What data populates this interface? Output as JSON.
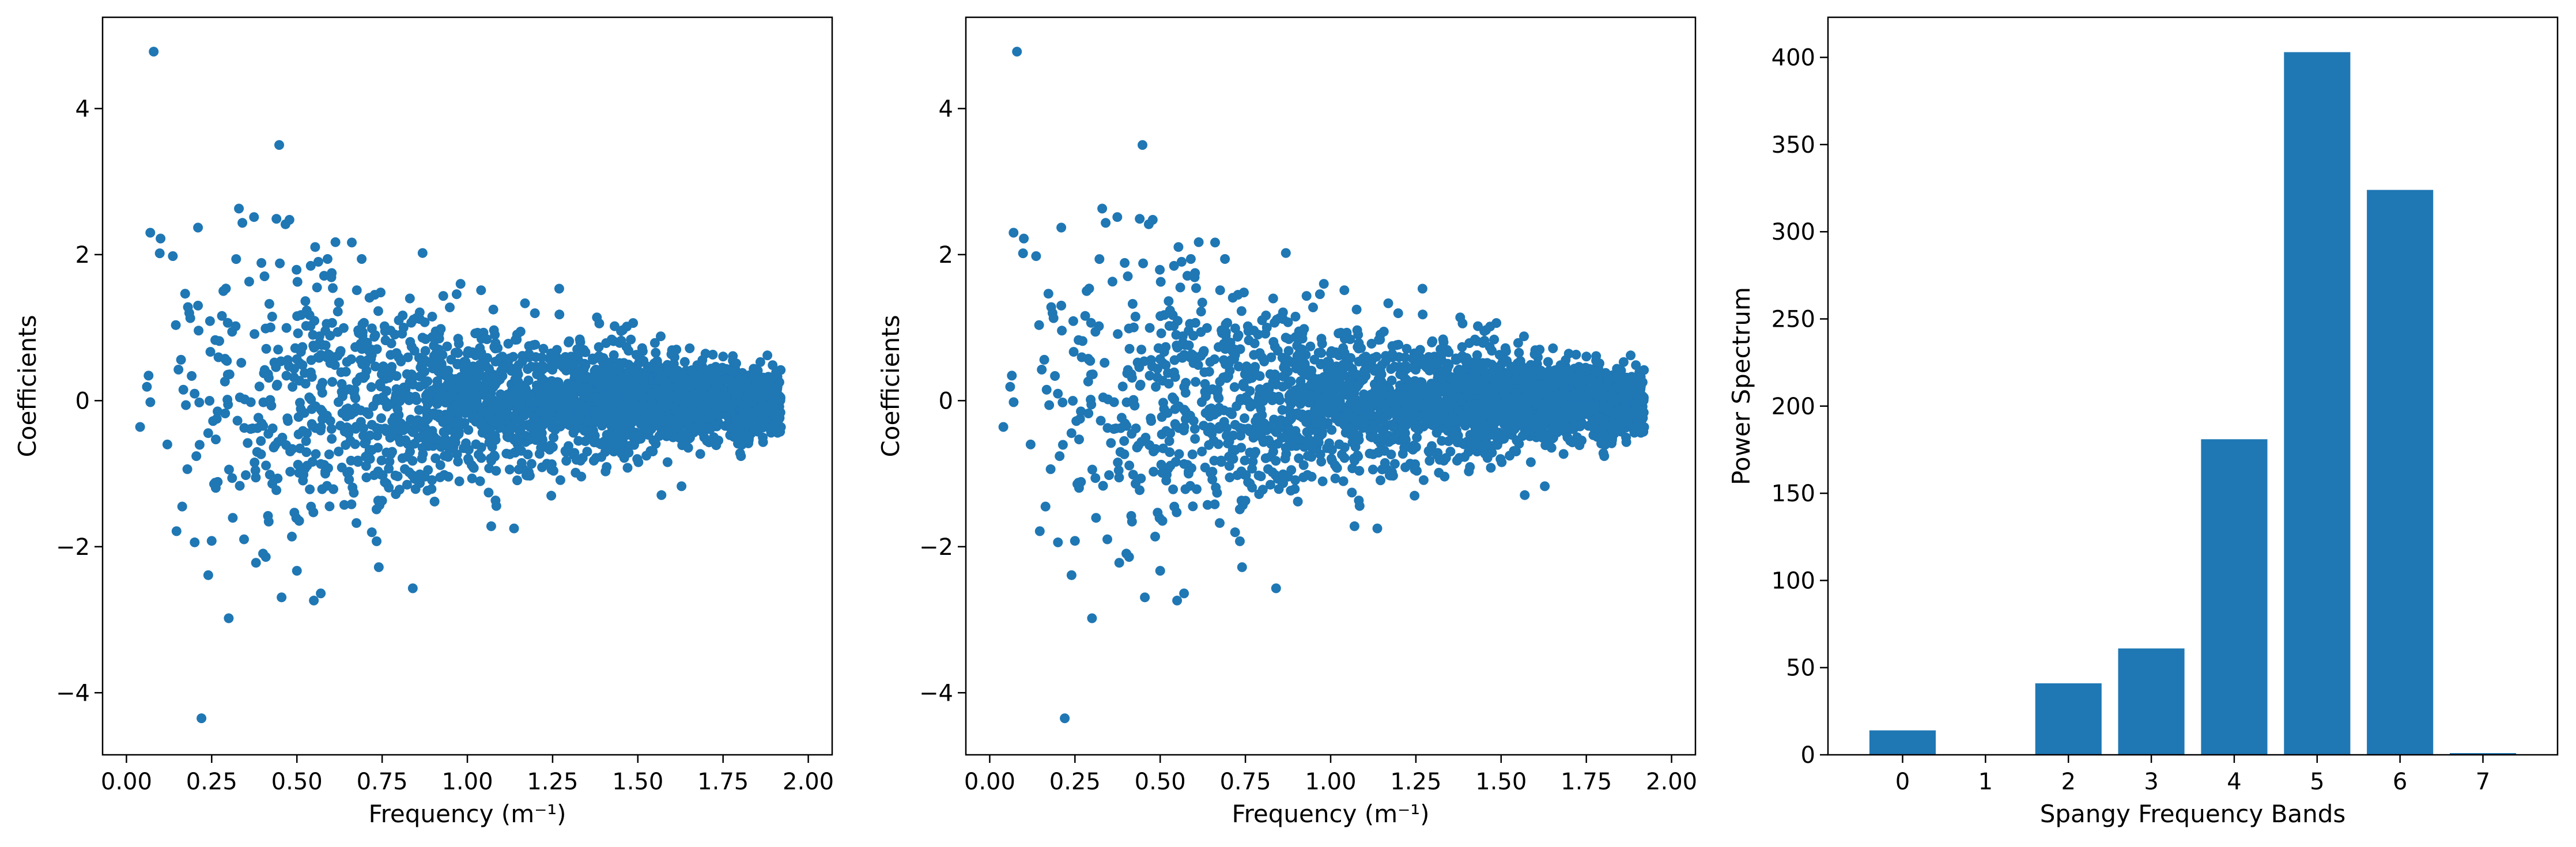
{
  "chart_data": [
    {
      "type": "scatter",
      "xlabel": "Frequency (m⁻¹)",
      "ylabel": "Coefficients",
      "xlim": [
        -0.07,
        2.07
      ],
      "ylim": [
        -4.85,
        5.25
      ],
      "xticks": [
        0.0,
        0.25,
        0.5,
        0.75,
        1.0,
        1.25,
        1.5,
        1.75,
        2.0
      ],
      "xtick_labels": [
        "0.00",
        "0.25",
        "0.50",
        "0.75",
        "1.00",
        "1.25",
        "1.50",
        "1.75",
        "2.00"
      ],
      "yticks": [
        -4,
        -2,
        0,
        2,
        4
      ],
      "ytick_labels": [
        "−4",
        "−2",
        "0",
        "2",
        "4"
      ],
      "grid": false,
      "color": "#1f77b4",
      "x_range": [
        0.03,
        1.92
      ],
      "points": [
        [
          0.08,
          4.78
        ],
        [
          0.22,
          -4.35
        ],
        [
          0.33,
          2.63
        ],
        [
          0.44,
          2.49
        ],
        [
          0.07,
          2.3
        ],
        [
          0.1,
          2.22
        ],
        [
          0.21,
          2.37
        ],
        [
          0.57,
          -2.64
        ],
        [
          0.84,
          -2.57
        ],
        [
          0.24,
          -2.39
        ],
        [
          0.5,
          -2.33
        ],
        [
          0.38,
          -2.22
        ],
        [
          0.25,
          -1.92
        ],
        [
          0.59,
          1.94
        ],
        [
          0.69,
          1.94
        ],
        [
          0.45,
          1.88
        ],
        [
          0.98,
          1.6
        ],
        [
          0.36,
          1.63
        ],
        [
          0.06,
          0.19
        ],
        [
          0.04,
          -0.36
        ],
        [
          0.12,
          -0.6
        ],
        [
          0.16,
          0.56
        ],
        [
          0.28,
          1.16
        ],
        [
          0.31,
          -1.06
        ],
        [
          0.41,
          0.71
        ],
        [
          0.53,
          -0.89
        ],
        [
          0.62,
          1.22
        ],
        [
          0.66,
          -1.42
        ],
        [
          0.72,
          0.99
        ],
        [
          0.79,
          -1.28
        ],
        [
          0.85,
          1.13
        ],
        [
          0.92,
          -1.05
        ],
        [
          1.03,
          0.93
        ],
        [
          1.07,
          -1.72
        ],
        [
          1.12,
          0.78
        ],
        [
          1.18,
          -0.98
        ],
        [
          1.27,
          1.18
        ],
        [
          1.32,
          -0.81
        ],
        [
          1.38,
          1.14
        ],
        [
          1.47,
          -0.92
        ],
        [
          1.55,
          0.79
        ],
        [
          1.63,
          -0.61
        ],
        [
          1.72,
          0.63
        ],
        [
          1.8,
          -0.72
        ],
        [
          1.88,
          0.62
        ],
        [
          1.91,
          -0.44
        ]
      ],
      "spread": [
        [
          0.0,
          1.2
        ],
        [
          0.5,
          1.0
        ],
        [
          1.0,
          0.5
        ],
        [
          1.5,
          0.33
        ],
        [
          1.92,
          0.2
        ]
      ]
    },
    {
      "type": "scatter",
      "xlabel": "Frequency (m⁻¹)",
      "ylabel": "Coefficients",
      "xlim": [
        -0.07,
        2.07
      ],
      "ylim": [
        -4.85,
        5.25
      ],
      "xticks": [
        0.0,
        0.25,
        0.5,
        0.75,
        1.0,
        1.25,
        1.5,
        1.75,
        2.0
      ],
      "xtick_labels": [
        "0.00",
        "0.25",
        "0.50",
        "0.75",
        "1.00",
        "1.25",
        "1.50",
        "1.75",
        "2.00"
      ],
      "yticks": [
        -4,
        -2,
        0,
        2,
        4
      ],
      "ytick_labels": [
        "−4",
        "−2",
        "0",
        "2",
        "4"
      ],
      "grid": false,
      "color": "#1f77b4",
      "x_range": [
        0.03,
        1.92
      ],
      "points": [
        [
          0.08,
          4.78
        ],
        [
          0.22,
          -4.35
        ],
        [
          0.33,
          2.63
        ],
        [
          0.44,
          2.49
        ],
        [
          0.07,
          2.3
        ],
        [
          0.1,
          2.22
        ],
        [
          0.21,
          2.37
        ],
        [
          0.57,
          -2.64
        ],
        [
          0.84,
          -2.57
        ],
        [
          0.24,
          -2.39
        ],
        [
          0.5,
          -2.33
        ],
        [
          0.38,
          -2.22
        ],
        [
          0.25,
          -1.92
        ],
        [
          0.59,
          1.94
        ],
        [
          0.69,
          1.94
        ],
        [
          0.45,
          1.88
        ],
        [
          0.98,
          1.6
        ],
        [
          0.36,
          1.63
        ],
        [
          0.06,
          0.19
        ],
        [
          0.04,
          -0.36
        ],
        [
          0.12,
          -0.6
        ],
        [
          0.16,
          0.56
        ],
        [
          0.28,
          1.16
        ],
        [
          0.31,
          -1.06
        ],
        [
          0.41,
          0.71
        ],
        [
          0.53,
          -0.89
        ],
        [
          0.62,
          1.22
        ],
        [
          0.66,
          -1.42
        ],
        [
          0.72,
          0.99
        ],
        [
          0.79,
          -1.28
        ],
        [
          0.85,
          1.13
        ],
        [
          0.92,
          -1.05
        ],
        [
          1.03,
          0.93
        ],
        [
          1.07,
          -1.72
        ],
        [
          1.12,
          0.78
        ],
        [
          1.18,
          -0.98
        ],
        [
          1.27,
          1.18
        ],
        [
          1.32,
          -0.81
        ],
        [
          1.38,
          1.14
        ],
        [
          1.47,
          -0.92
        ],
        [
          1.55,
          0.79
        ],
        [
          1.63,
          -0.61
        ],
        [
          1.72,
          0.63
        ],
        [
          1.8,
          -0.72
        ],
        [
          1.88,
          0.62
        ],
        [
          1.91,
          -0.44
        ]
      ],
      "spread": [
        [
          0.0,
          1.2
        ],
        [
          0.5,
          1.0
        ],
        [
          1.0,
          0.5
        ],
        [
          1.5,
          0.33
        ],
        [
          1.92,
          0.2
        ]
      ]
    },
    {
      "type": "bar",
      "xlabel": "Spangy Frequency Bands",
      "ylabel": "Power Spectrum",
      "categories": [
        "0",
        "1",
        "2",
        "3",
        "4",
        "5",
        "6",
        "7"
      ],
      "values": [
        14,
        0,
        41,
        61,
        181,
        403,
        324,
        1
      ],
      "ylim": [
        0,
        423
      ],
      "yticks": [
        0,
        50,
        100,
        150,
        200,
        250,
        300,
        350,
        400
      ],
      "ytick_labels": [
        "0",
        "50",
        "100",
        "150",
        "200",
        "250",
        "300",
        "350",
        "400"
      ],
      "grid": false,
      "color": "#1f77b4"
    }
  ]
}
